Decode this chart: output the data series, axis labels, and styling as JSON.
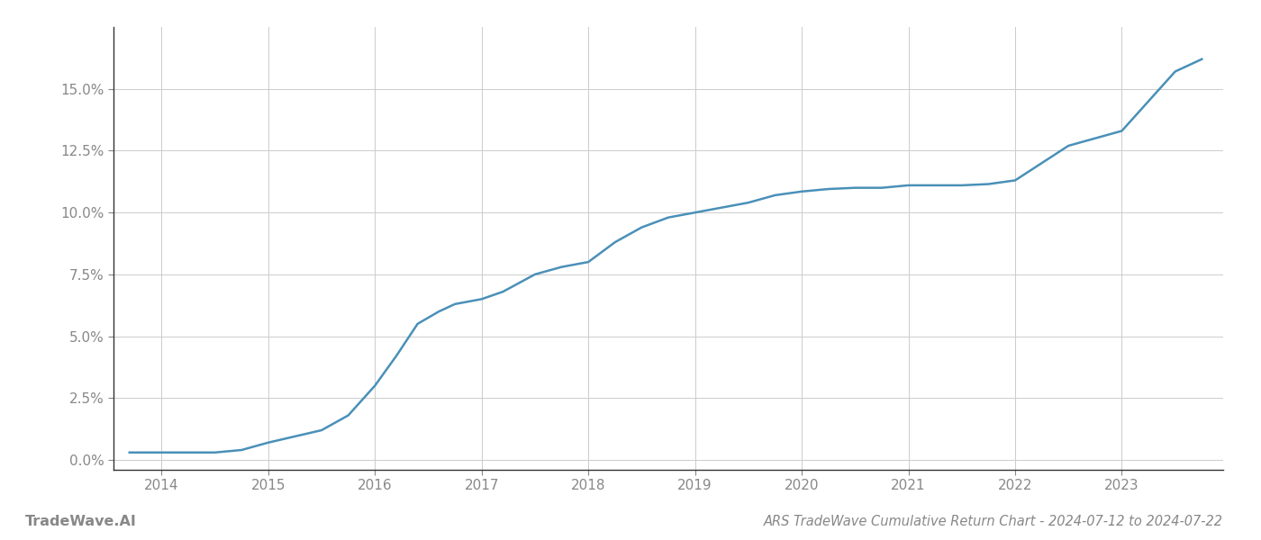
{
  "title": "ARS TradeWave Cumulative Return Chart - 2024-07-12 to 2024-07-22",
  "watermark": "TradeWave.AI",
  "line_color": "#4a90b8",
  "background_color": "#ffffff",
  "grid_color": "#cccccc",
  "x_years": [
    2014,
    2015,
    2016,
    2017,
    2018,
    2019,
    2020,
    2021,
    2022,
    2023
  ],
  "data_points": [
    [
      2013.7,
      0.003
    ],
    [
      2013.85,
      0.003
    ],
    [
      2014.0,
      0.003
    ],
    [
      2014.2,
      0.003
    ],
    [
      2014.5,
      0.003
    ],
    [
      2014.75,
      0.004
    ],
    [
      2015.0,
      0.007
    ],
    [
      2015.2,
      0.009
    ],
    [
      2015.5,
      0.012
    ],
    [
      2015.75,
      0.018
    ],
    [
      2016.0,
      0.03
    ],
    [
      2016.2,
      0.042
    ],
    [
      2016.4,
      0.055
    ],
    [
      2016.6,
      0.06
    ],
    [
      2016.75,
      0.063
    ],
    [
      2017.0,
      0.065
    ],
    [
      2017.2,
      0.068
    ],
    [
      2017.5,
      0.075
    ],
    [
      2017.75,
      0.078
    ],
    [
      2018.0,
      0.08
    ],
    [
      2018.25,
      0.088
    ],
    [
      2018.5,
      0.094
    ],
    [
      2018.75,
      0.098
    ],
    [
      2019.0,
      0.1
    ],
    [
      2019.25,
      0.102
    ],
    [
      2019.5,
      0.104
    ],
    [
      2019.75,
      0.107
    ],
    [
      2020.0,
      0.1085
    ],
    [
      2020.25,
      0.1095
    ],
    [
      2020.5,
      0.11
    ],
    [
      2020.75,
      0.11
    ],
    [
      2021.0,
      0.111
    ],
    [
      2021.25,
      0.111
    ],
    [
      2021.5,
      0.111
    ],
    [
      2021.75,
      0.1115
    ],
    [
      2022.0,
      0.113
    ],
    [
      2022.25,
      0.12
    ],
    [
      2022.5,
      0.127
    ],
    [
      2022.75,
      0.13
    ],
    [
      2023.0,
      0.133
    ],
    [
      2023.25,
      0.145
    ],
    [
      2023.5,
      0.157
    ],
    [
      2023.75,
      0.162
    ]
  ],
  "ylim": [
    -0.004,
    0.175
  ],
  "xlim": [
    2013.55,
    2023.95
  ],
  "yticks": [
    0.0,
    0.025,
    0.05,
    0.075,
    0.1,
    0.125,
    0.15
  ],
  "ytick_labels": [
    "0.0%",
    "2.5%",
    "5.0%",
    "7.5%",
    "10.0%",
    "12.5%",
    "15.0%"
  ],
  "axis_label_color": "#888888",
  "spine_color": "#333333",
  "title_fontsize": 10.5,
  "tick_fontsize": 11,
  "watermark_fontsize": 11.5,
  "line_width": 1.8
}
